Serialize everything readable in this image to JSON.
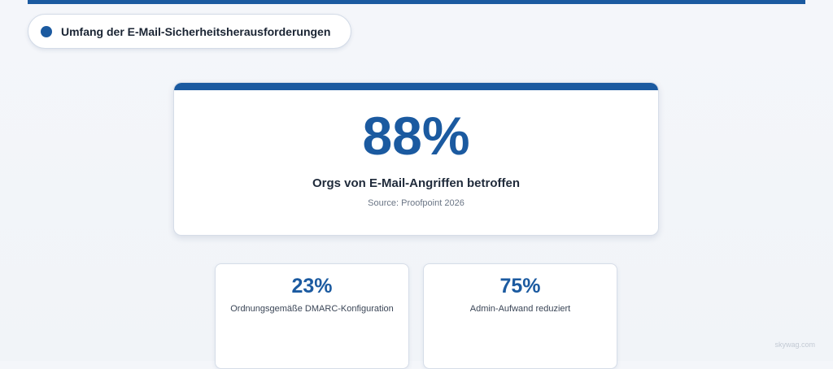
{
  "section": {
    "title": "Umfang der E-Mail-Sicherheitsherausforderungen"
  },
  "hero": {
    "value": "88%",
    "label": "Orgs von E-Mail-Angriffen betroffen",
    "source": "Source: Proofpoint 2026"
  },
  "stats": [
    {
      "value": "23%",
      "label": "Ordnungsgemäße DMARC-Konfiguration"
    },
    {
      "value": "75%",
      "label": "Admin-Aufwand reduziert"
    }
  ],
  "watermark": "skywag.com",
  "colors": {
    "accent": "#1b5aa0",
    "background": "#f3f5f9",
    "card": "#ffffff"
  }
}
